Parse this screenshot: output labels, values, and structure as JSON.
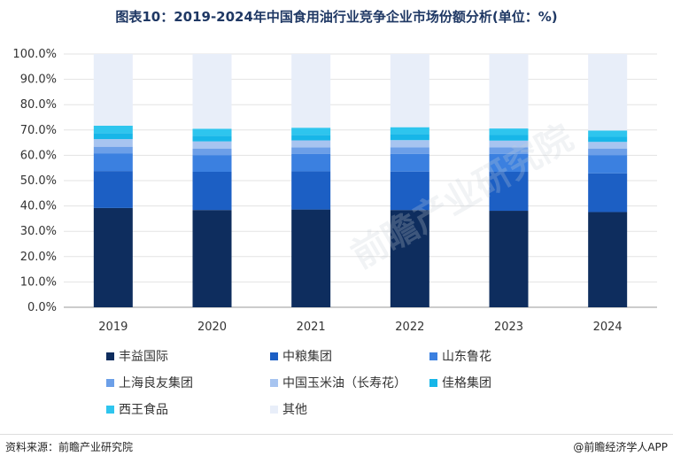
{
  "chart_data": {
    "type": "bar",
    "stacked": true,
    "title": "图表10：2019-2024年中国食用油行业竞争企业市场份额分析(单位：%)",
    "categories": [
      "2019",
      "2020",
      "2021",
      "2022",
      "2023",
      "2024"
    ],
    "ylim": [
      0,
      100
    ],
    "yticks": [
      "0.0%",
      "10.0%",
      "20.0%",
      "30.0%",
      "40.0%",
      "50.0%",
      "60.0%",
      "70.0%",
      "80.0%",
      "90.0%",
      "100.0%"
    ],
    "series": [
      {
        "name": "丰益国际",
        "color": "#0e2d5e",
        "values": [
          39.2,
          38.4,
          38.6,
          38.4,
          38.1,
          37.6
        ]
      },
      {
        "name": "中粮集团",
        "color": "#1c5fc4",
        "values": [
          14.6,
          15.1,
          15.1,
          15.2,
          15.4,
          15.3
        ]
      },
      {
        "name": "山东鲁花",
        "color": "#3b80e0",
        "values": [
          7.0,
          6.6,
          6.8,
          7.0,
          7.1,
          7.2
        ]
      },
      {
        "name": "上海良友集团",
        "color": "#6c9fe8",
        "values": [
          2.6,
          2.6,
          2.6,
          2.6,
          2.6,
          2.6
        ]
      },
      {
        "name": "中国玉米油（长寿花）",
        "color": "#a7c4f0",
        "values": [
          3.0,
          2.8,
          2.8,
          2.8,
          2.6,
          2.6
        ]
      },
      {
        "name": "佳格集团",
        "color": "#17b6e8",
        "values": [
          2.4,
          2.2,
          2.2,
          2.4,
          2.2,
          2.0
        ]
      },
      {
        "name": "西王食品",
        "color": "#2ec5ee",
        "values": [
          2.9,
          2.8,
          2.8,
          2.7,
          2.6,
          2.5
        ]
      },
      {
        "name": "其他",
        "color": "#e8eef9",
        "values": [
          28.3,
          29.5,
          29.1,
          28.9,
          29.4,
          30.2
        ]
      }
    ],
    "legend_position": "bottom"
  },
  "footer": {
    "source": "资料来源：前瞻产业研究院",
    "credit": "@前瞻经济学人APP"
  },
  "watermark": "前瞻产业研究院"
}
